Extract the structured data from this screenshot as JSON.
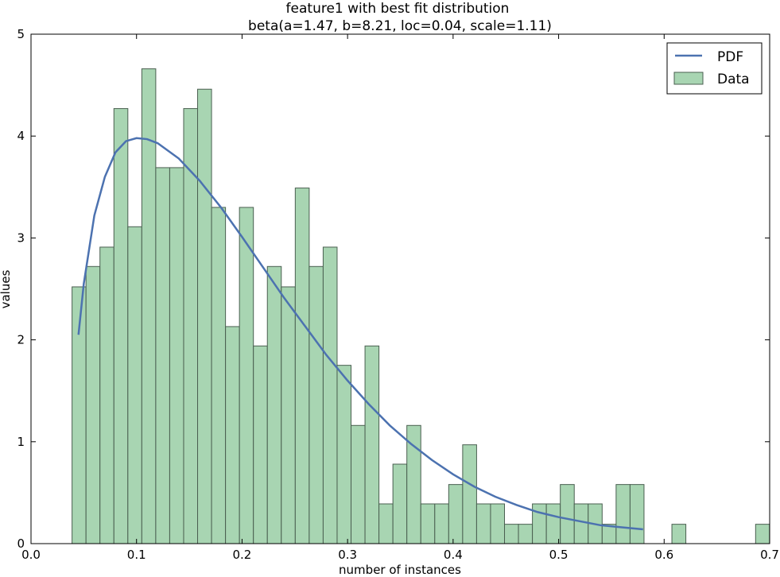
{
  "chart_data": {
    "type": "bar",
    "title": "feature1 with best fit distribution",
    "subtitle": "beta(a=1.47, b=8.21, loc=0.04, scale=1.11)",
    "xlabel": "number of instances",
    "ylabel": "values",
    "xlim": [
      0.0,
      0.7
    ],
    "ylim": [
      0,
      5
    ],
    "xticks": [
      "0.0",
      "0.1",
      "0.2",
      "0.3",
      "0.4",
      "0.5",
      "0.6",
      "0.7"
    ],
    "yticks": [
      "0",
      "1",
      "2",
      "3",
      "4",
      "5"
    ],
    "legend_position": "top-right",
    "grid": false,
    "bin_width": 0.01322,
    "bin_start": 0.0389,
    "series": [
      {
        "name": "Data",
        "kind": "histogram",
        "color": "#a8d5b2",
        "edge_color": "#4a5f50",
        "values": [
          2.52,
          2.72,
          2.91,
          4.27,
          3.11,
          4.66,
          3.69,
          3.69,
          4.27,
          4.46,
          3.3,
          2.13,
          3.3,
          1.94,
          2.72,
          2.52,
          3.49,
          2.72,
          2.91,
          1.75,
          1.16,
          1.94,
          0.39,
          0.78,
          1.16,
          0.39,
          0.39,
          0.58,
          0.97,
          0.39,
          0.39,
          0.19,
          0.19,
          0.39,
          0.39,
          0.58,
          0.39,
          0.39,
          0.19,
          0.58,
          0.58,
          0,
          0,
          0.19,
          0,
          0,
          0,
          0,
          0,
          0.19
        ]
      },
      {
        "name": "PDF",
        "kind": "line",
        "color": "#4c72b0",
        "x": [
          0.045,
          0.05,
          0.06,
          0.07,
          0.08,
          0.09,
          0.1,
          0.11,
          0.12,
          0.14,
          0.16,
          0.18,
          0.2,
          0.22,
          0.24,
          0.26,
          0.28,
          0.3,
          0.32,
          0.34,
          0.36,
          0.38,
          0.4,
          0.42,
          0.44,
          0.46,
          0.48,
          0.5,
          0.52,
          0.54,
          0.56,
          0.58
        ],
        "y": [
          2.05,
          2.55,
          3.22,
          3.6,
          3.84,
          3.95,
          3.98,
          3.97,
          3.93,
          3.78,
          3.56,
          3.3,
          3.01,
          2.71,
          2.41,
          2.13,
          1.85,
          1.6,
          1.37,
          1.16,
          0.98,
          0.82,
          0.68,
          0.56,
          0.46,
          0.38,
          0.31,
          0.26,
          0.22,
          0.18,
          0.16,
          0.14
        ]
      }
    ]
  }
}
